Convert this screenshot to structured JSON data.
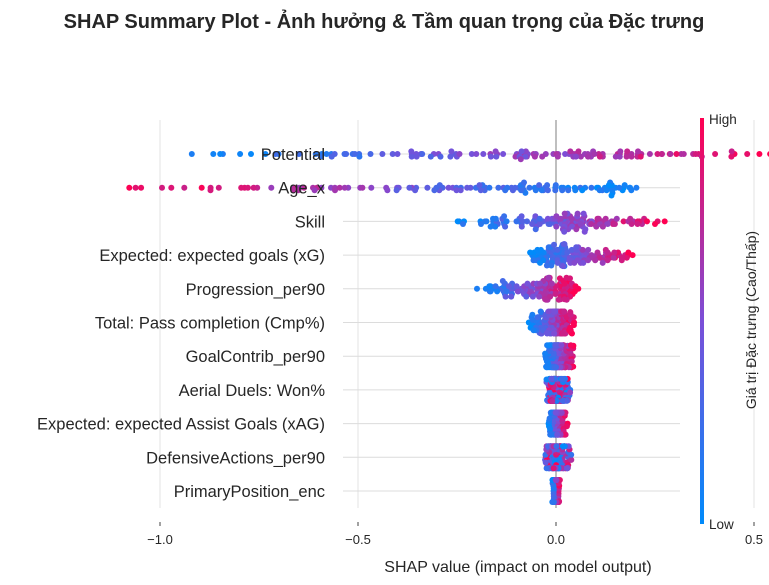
{
  "chart_data": {
    "type": "scatter",
    "subtype": "shap_beeswarm",
    "title": "SHAP Summary Plot - Ảnh hưởng & Tầm quan trọng của Đặc trưng",
    "xlabel": "SHAP value (impact on model output)",
    "xlim": [
      -1.2,
      0.75
    ],
    "xticks": [
      -1.0,
      -0.5,
      0.0,
      0.5
    ],
    "xtick_labels": [
      "−1.0",
      "−0.5",
      "0.0",
      "0.5"
    ],
    "grid": true,
    "colorbar": {
      "label": "Giá trị Đặc trưng (Cao/Thấp)",
      "high_label": "High",
      "low_label": "Low",
      "low_color": "#008bfb",
      "high_color": "#ff0052"
    },
    "features": [
      {
        "name": "Potential",
        "min": -0.96,
        "max": 0.6,
        "peak": 0.05,
        "skew": 0.6,
        "mode": "pos_high"
      },
      {
        "name": "Age_x",
        "min": -1.08,
        "max": 0.22,
        "peak": 0.2,
        "skew": 0.2,
        "mode": "neg_high"
      },
      {
        "name": "Skill",
        "min": -0.27,
        "max": 0.3,
        "peak": 0.02,
        "skew": 0.9,
        "mode": "pos_high"
      },
      {
        "name": "Expected: expected goals (xG)",
        "min": -0.07,
        "max": 0.2,
        "peak": -0.02,
        "skew": 0.4,
        "mode": "pos_high"
      },
      {
        "name": "Progression_per90",
        "min": -0.2,
        "max": 0.06,
        "peak": 0.04,
        "skew": 0.4,
        "mode": "pos_high"
      },
      {
        "name": "Total: Pass completion (Cmp%)",
        "min": -0.07,
        "max": 0.05,
        "peak": 0.0,
        "skew": 0.6,
        "mode": "pos_high"
      },
      {
        "name": "GoalContrib_per90",
        "min": -0.03,
        "max": 0.05,
        "peak": -0.01,
        "skew": 0.7,
        "mode": "pos_high"
      },
      {
        "name": "Aerial Duels: Won%",
        "min": -0.03,
        "max": 0.04,
        "peak": 0.0,
        "skew": 0.5,
        "mode": "mixed"
      },
      {
        "name": "Expected: expected Assist Goals (xAG)",
        "min": -0.02,
        "max": 0.03,
        "peak": 0.0,
        "skew": 0.5,
        "mode": "pos_high"
      },
      {
        "name": "DefensiveActions_per90",
        "min": -0.03,
        "max": 0.04,
        "peak": 0.0,
        "skew": 0.5,
        "mode": "mixed"
      },
      {
        "name": "PrimaryPosition_enc",
        "min": -0.01,
        "max": 0.01,
        "peak": 0.0,
        "skew": 0.5,
        "mode": "pos_high"
      }
    ]
  }
}
